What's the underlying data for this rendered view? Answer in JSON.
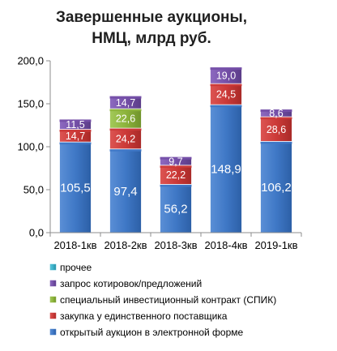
{
  "chart_data": {
    "type": "bar",
    "stacked": true,
    "title": [
      "Завершенные аукционы,",
      "НМЦ, млрд руб."
    ],
    "categories": [
      "2018-1кв",
      "2018-2кв",
      "2018-3кв",
      "2018-4кв",
      "2019-1кв"
    ],
    "ylim": [
      0,
      200
    ],
    "yticks": [
      "0,0",
      "50,0",
      "100,0",
      "150,0",
      "200,0"
    ],
    "grid": false,
    "legend_position": "bottom",
    "series": [
      {
        "name": "открытый аукцион в электронной форме",
        "color": "#3f78c6",
        "values": [
          105.5,
          97.4,
          56.2,
          148.9,
          106.2
        ],
        "labels": [
          "105,5",
          "97,4",
          "56,2",
          "148,9",
          "106,2"
        ]
      },
      {
        "name": "закупка у единственного поставщика",
        "color": "#cc3a38",
        "values": [
          14.7,
          24.2,
          22.2,
          24.5,
          28.6
        ],
        "labels": [
          "14,7",
          "24,2",
          "22,2",
          "24,5",
          "28,6"
        ]
      },
      {
        "name": "специальный инвестиционный контракт (СПИК)",
        "color": "#8db43c",
        "values": [
          0,
          22.6,
          0,
          0,
          0
        ],
        "labels": [
          "",
          "22,6",
          "",
          "",
          ""
        ]
      },
      {
        "name": "запрос котировок/предложений",
        "color": "#7550a8",
        "values": [
          11.5,
          14.7,
          9.7,
          19.0,
          8.6
        ],
        "labels": [
          "11,5",
          "14,7",
          "9,7",
          "19,0",
          "8,6"
        ]
      },
      {
        "name": "прочее",
        "color": "#3bb1c9",
        "values": [
          0,
          0,
          0,
          0,
          0
        ],
        "labels": [
          "",
          "",
          "",
          "",
          ""
        ]
      }
    ],
    "legend_order": [
      4,
      3,
      2,
      1,
      0
    ]
  }
}
